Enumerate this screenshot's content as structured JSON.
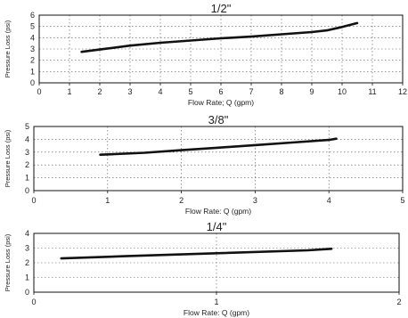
{
  "chart_data": [
    {
      "type": "line",
      "title": "1/2\"",
      "xlabel": "Flow Rate; Q (gpm)",
      "ylabel": "Pressure Loss (psi)",
      "xlim": [
        0,
        12
      ],
      "ylim": [
        0,
        6
      ],
      "xticks": [
        "0",
        "1",
        "2",
        "3",
        "4",
        "5",
        "6",
        "7",
        "8",
        "9",
        "10",
        "11",
        "12"
      ],
      "yticks": [
        "0",
        "1",
        "2",
        "3",
        "4",
        "5",
        "6"
      ],
      "grid": true,
      "series": [
        {
          "x": [
            1.4,
            2.0,
            3.0,
            4.0,
            5.0,
            6.0,
            7.0,
            8.0,
            9.0,
            9.5,
            10.0,
            10.5
          ],
          "y": [
            2.75,
            2.95,
            3.3,
            3.55,
            3.75,
            3.95,
            4.1,
            4.3,
            4.5,
            4.65,
            4.95,
            5.3
          ]
        }
      ]
    },
    {
      "type": "line",
      "title": "3/8\"",
      "xlabel": "Flow Rate: Q (gpm)",
      "ylabel": "Pressure Loss (psi)",
      "xlim": [
        0,
        5
      ],
      "ylim": [
        0,
        5
      ],
      "xticks": [
        "0",
        "1",
        "2",
        "3",
        "4",
        "5"
      ],
      "yticks": [
        "0",
        "1",
        "2",
        "3",
        "4",
        "5"
      ],
      "grid": true,
      "series": [
        {
          "x": [
            0.9,
            1.5,
            2.0,
            2.5,
            3.0,
            3.5,
            4.0,
            4.1
          ],
          "y": [
            2.8,
            2.95,
            3.15,
            3.35,
            3.55,
            3.75,
            3.95,
            4.05
          ]
        }
      ]
    },
    {
      "type": "line",
      "title": "1/4\"",
      "xlabel": "Flow Rate: Q (gpm)",
      "ylabel": "Pressure Loss (psi)",
      "xlim": [
        0,
        2
      ],
      "ylim": [
        0,
        4
      ],
      "xticks": [
        "0",
        "1",
        "2"
      ],
      "yticks": [
        "0",
        "1",
        "2",
        "3",
        "4"
      ],
      "grid": true,
      "series": [
        {
          "x": [
            0.15,
            0.5,
            1.0,
            1.5,
            1.63
          ],
          "y": [
            2.3,
            2.45,
            2.65,
            2.85,
            2.95
          ]
        }
      ]
    }
  ]
}
